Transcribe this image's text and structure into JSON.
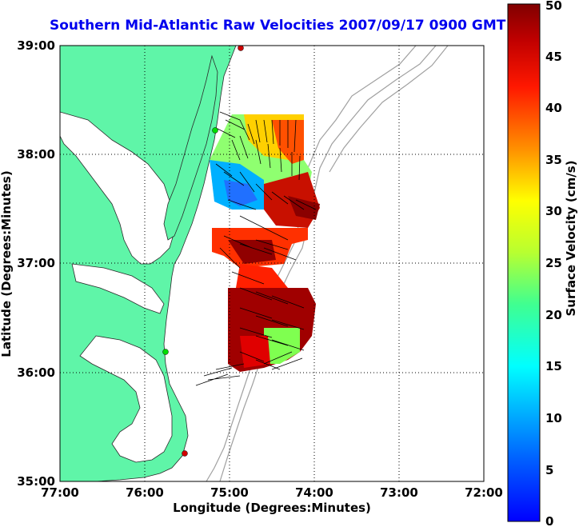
{
  "title": "Southern Mid-Atlantic Raw Velocities 2007/09/17 0900 GMT",
  "map": {
    "xlabel": "Longitude (Degrees:Minutes)",
    "ylabel": "Latitude (Degrees:Minutes)",
    "lon_ticks": [
      "77:00",
      "76:00",
      "75:00",
      "74:00",
      "73:00",
      "72:00"
    ],
    "lat_ticks": [
      "39:00",
      "38:00",
      "37:00",
      "36:00",
      "35:00"
    ],
    "grid": "dotted",
    "colors": {
      "land": "#5ff5a8",
      "coast_dots": "#d00000",
      "station_green": "#00dd00",
      "bathymetry": "#a0a0a0"
    }
  },
  "colorbar": {
    "label": "Surface Velocity (cm/s)",
    "ticks": [
      "0",
      "5",
      "10",
      "15",
      "20",
      "25",
      "30",
      "35",
      "40",
      "45",
      "50"
    ],
    "range": [
      0,
      50
    ],
    "colormap": "jet"
  }
}
